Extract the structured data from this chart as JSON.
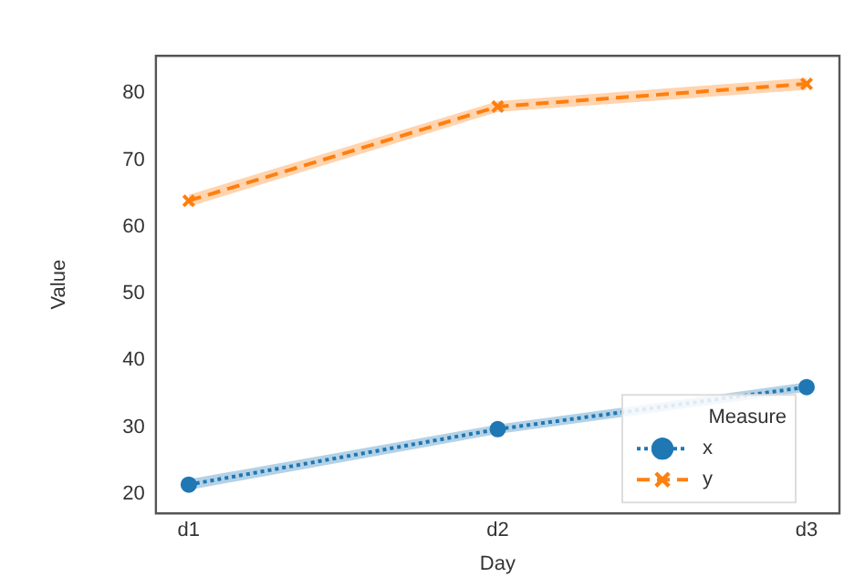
{
  "chart_data": {
    "type": "line",
    "xlabel": "Day",
    "ylabel": "Value",
    "categories": [
      "d1",
      "d2",
      "d3"
    ],
    "series": [
      {
        "name": "x",
        "color": "#1f77b4",
        "values": [
          21.4,
          29.7,
          36
        ],
        "lower": [
          20.6,
          29.0,
          35.3
        ],
        "upper": [
          22.2,
          30.4,
          36.7
        ],
        "marker": "circle",
        "line_style": "dotted"
      },
      {
        "name": "y",
        "color": "#ff7f0e",
        "values": [
          63.9,
          78,
          81.4
        ],
        "lower": [
          63.0,
          77.2,
          80.5
        ],
        "upper": [
          64.8,
          78.8,
          82.3
        ],
        "marker": "cross",
        "line_style": "dashed"
      }
    ],
    "ylim": [
      17.1,
      85.6
    ],
    "yticks": [
      20,
      30,
      40,
      50,
      60,
      70,
      80
    ],
    "grid": false,
    "legend": "bottom right",
    "legend_title": "Measure"
  }
}
